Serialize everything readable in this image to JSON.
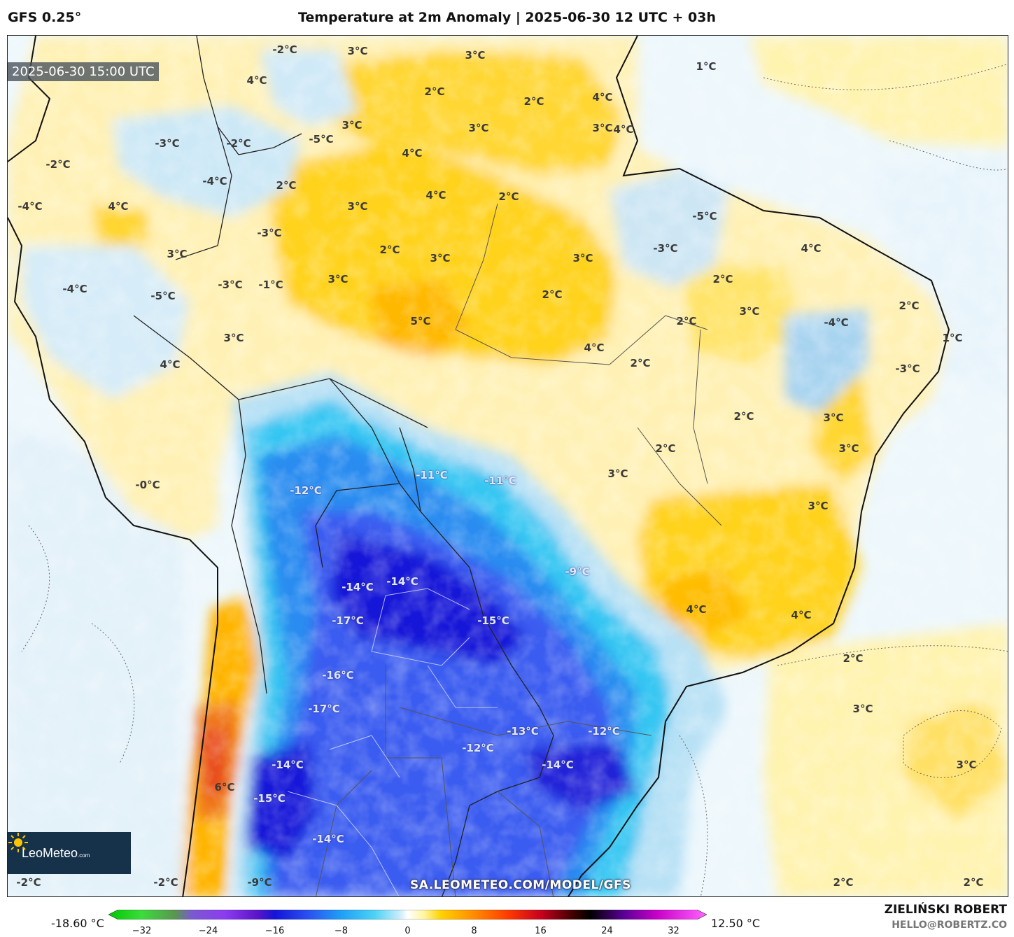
{
  "header": {
    "model": "GFS 0.25°",
    "title": "Temperature at 2m Anomaly | 2025-06-30 12 UTC + 03h"
  },
  "map": {
    "valid_time": "2025-06-30 15:00 UTC",
    "logo": {
      "name": "LeoMeteo",
      "suffix": ".com"
    },
    "url": "SA.LEOMETEO.COM/MODEL/GFS",
    "colors": {
      "warm_light": "#fff3b0",
      "warm": "#ffd21f",
      "warm_strong": "#ffb400",
      "hot": "#f07a1e",
      "hotter": "#e84c1c",
      "neutral_cold": "#e6f3fb",
      "cold_light": "#b8e1f5",
      "cold": "#35c6f2",
      "cold_mid": "#2a8cf0",
      "cold_strong": "#3a5cf0",
      "cold_extreme": "#1414d8",
      "ocean": "#edf7fc"
    },
    "labels": [
      {
        "text": "-2°C",
        "kind": "dark"
      },
      {
        "text": "3°C",
        "kind": "dark"
      },
      {
        "text": "3°C",
        "kind": "dark"
      },
      {
        "text": "1°C",
        "kind": "dark"
      },
      {
        "text": "2°C",
        "kind": "dark"
      },
      {
        "text": "4°C",
        "kind": "dark"
      },
      {
        "text": "2°C",
        "kind": "dark"
      },
      {
        "text": "4°C",
        "kind": "dark"
      },
      {
        "text": "3°C",
        "kind": "dark"
      },
      {
        "text": "3°C",
        "kind": "dark"
      },
      {
        "text": "3°C",
        "kind": "dark"
      },
      {
        "text": "4°C",
        "kind": "dark"
      },
      {
        "text": "-3°C",
        "kind": "dark"
      },
      {
        "text": "-2°C",
        "kind": "dark"
      },
      {
        "text": "-5°C",
        "kind": "dark"
      },
      {
        "text": "4°C",
        "kind": "dark"
      },
      {
        "text": "-2°C",
        "kind": "dark"
      },
      {
        "text": "-4°C",
        "kind": "dark"
      },
      {
        "text": "2°C",
        "kind": "dark"
      },
      {
        "text": "4°C",
        "kind": "dark"
      },
      {
        "text": "2°C",
        "kind": "dark"
      },
      {
        "text": "-4°C",
        "kind": "dark"
      },
      {
        "text": "4°C",
        "kind": "dark"
      },
      {
        "text": "3°C",
        "kind": "dark"
      },
      {
        "text": "-5°C",
        "kind": "dark"
      },
      {
        "text": "-3°C",
        "kind": "dark"
      },
      {
        "text": "2°C",
        "kind": "dark"
      },
      {
        "text": "4°C",
        "kind": "dark"
      },
      {
        "text": "3°C",
        "kind": "dark"
      },
      {
        "text": "3°C",
        "kind": "dark"
      },
      {
        "text": "-3°C",
        "kind": "dark"
      },
      {
        "text": "-4°C",
        "kind": "dark"
      },
      {
        "text": "-3°C",
        "kind": "dark"
      },
      {
        "text": "-1°C",
        "kind": "dark"
      },
      {
        "text": "3°C",
        "kind": "dark"
      },
      {
        "text": "3°C",
        "kind": "dark"
      },
      {
        "text": "-5°C",
        "kind": "dark"
      },
      {
        "text": "2°C",
        "kind": "dark"
      },
      {
        "text": "2°C",
        "kind": "dark"
      },
      {
        "text": "3°C",
        "kind": "dark"
      },
      {
        "text": "2°C",
        "kind": "dark"
      },
      {
        "text": "-4°C",
        "kind": "dark"
      },
      {
        "text": "2°C",
        "kind": "dark"
      },
      {
        "text": "5°C",
        "kind": "dark"
      },
      {
        "text": "3°C",
        "kind": "dark"
      },
      {
        "text": "4°C",
        "kind": "dark"
      },
      {
        "text": "1°C",
        "kind": "dark"
      },
      {
        "text": "4°C",
        "kind": "dark"
      },
      {
        "text": "2°C",
        "kind": "dark"
      },
      {
        "text": "-3°C",
        "kind": "dark"
      },
      {
        "text": "2°C",
        "kind": "dark"
      },
      {
        "text": "3°C",
        "kind": "dark"
      },
      {
        "text": "2°C",
        "kind": "dark"
      },
      {
        "text": "3°C",
        "kind": "dark"
      },
      {
        "text": "-0°C",
        "kind": "dark"
      },
      {
        "text": "-11°C",
        "kind": "light"
      },
      {
        "text": "-11°C",
        "kind": "light"
      },
      {
        "text": "3°C",
        "kind": "dark"
      },
      {
        "text": "-12°C",
        "kind": "light"
      },
      {
        "text": "3°C",
        "kind": "dark"
      },
      {
        "text": "-9°C",
        "kind": "light"
      },
      {
        "text": "-14°C",
        "kind": "light"
      },
      {
        "text": "-14°C",
        "kind": "light"
      },
      {
        "text": "4°C",
        "kind": "dark"
      },
      {
        "text": "4°C",
        "kind": "dark"
      },
      {
        "text": "-17°C",
        "kind": "light"
      },
      {
        "text": "-15°C",
        "kind": "light"
      },
      {
        "text": "2°C",
        "kind": "dark"
      },
      {
        "text": "-16°C",
        "kind": "light"
      },
      {
        "text": "-17°C",
        "kind": "light"
      },
      {
        "text": "3°C",
        "kind": "dark"
      },
      {
        "text": "-13°C",
        "kind": "light"
      },
      {
        "text": "-12°C",
        "kind": "light"
      },
      {
        "text": "-12°C",
        "kind": "light"
      },
      {
        "text": "-14°C",
        "kind": "light"
      },
      {
        "text": "-14°C",
        "kind": "light"
      },
      {
        "text": "3°C",
        "kind": "dark"
      },
      {
        "text": "6°C",
        "kind": "dark"
      },
      {
        "text": "-15°C",
        "kind": "light"
      },
      {
        "text": "-14°C",
        "kind": "light"
      },
      {
        "text": "-2°C",
        "kind": "dark"
      },
      {
        "text": "-2°C",
        "kind": "dark"
      },
      {
        "text": "-9°C",
        "kind": "dark"
      },
      {
        "text": "2°C",
        "kind": "dark"
      },
      {
        "text": "2°C",
        "kind": "dark"
      }
    ]
  },
  "colorbar": {
    "min_label": "-18.60 °C",
    "max_label": "12.50 °C",
    "ticks": [
      "−32",
      "−24",
      "−16",
      "−8",
      "0",
      "8",
      "16",
      "24",
      "32"
    ],
    "range": [
      -36,
      36
    ],
    "stops": [
      {
        "value": -36,
        "color": "#00c800"
      },
      {
        "value": -32,
        "color": "#3cdc3c"
      },
      {
        "value": -28,
        "color": "#5a9650"
      },
      {
        "value": -26,
        "color": "#7a5ad0"
      },
      {
        "value": -22,
        "color": "#8c3cf0"
      },
      {
        "value": -18,
        "color": "#5a14c8"
      },
      {
        "value": -16,
        "color": "#1414d8"
      },
      {
        "value": -12,
        "color": "#2a50f0"
      },
      {
        "value": -8,
        "color": "#1ea0f5"
      },
      {
        "value": -4,
        "color": "#4cd2f5"
      },
      {
        "value": -1,
        "color": "#c8ecfa"
      },
      {
        "value": 0,
        "color": "#ffffff"
      },
      {
        "value": 2,
        "color": "#fff5a0"
      },
      {
        "value": 4,
        "color": "#ffd200"
      },
      {
        "value": 8,
        "color": "#ff8c00"
      },
      {
        "value": 12,
        "color": "#ff3c00"
      },
      {
        "value": 16,
        "color": "#c8001e"
      },
      {
        "value": 20,
        "color": "#3c0000"
      },
      {
        "value": 22,
        "color": "#000000"
      },
      {
        "value": 26,
        "color": "#5a0096"
      },
      {
        "value": 30,
        "color": "#c800c8"
      },
      {
        "value": 36,
        "color": "#ff64ff"
      }
    ]
  },
  "footer": {
    "author": "ZIELIŃSKI ROBERT",
    "email": "HELLO@ROBERTZ.CO"
  }
}
